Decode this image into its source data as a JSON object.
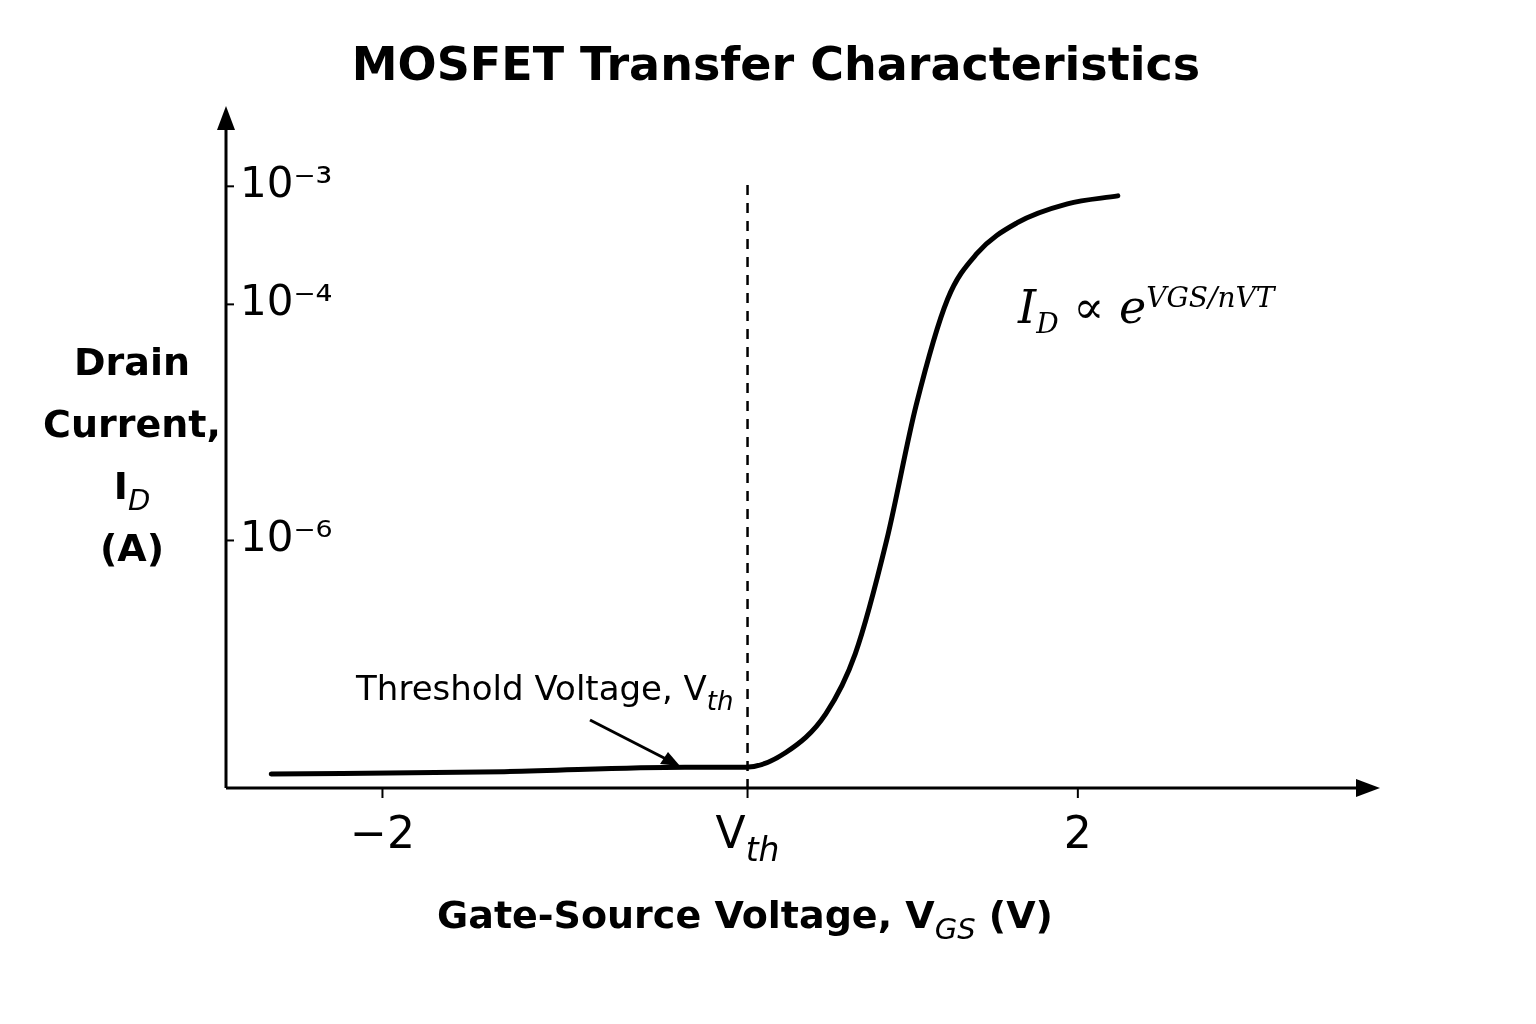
{
  "chart_data": {
    "type": "line",
    "title": "MOSFET Transfer Characteristics",
    "xlabel": "Gate-Source Voltage, V$_{GS}$ (V)",
    "ylabel": "Drain Current, I$_{D}$ (A)",
    "x": [
      -2.64,
      -1.3,
      -0.26,
      0.09,
      0.32,
      0.55,
      0.72,
      0.9,
      1.07,
      1.25,
      1.42,
      1.65,
      1.94,
      2.23
    ],
    "values": [
      1.05e-08,
      1.1e-08,
      1.2e-08,
      1.2e-08,
      1.6e-08,
      3.4e-08,
      1.1e-07,
      1e-06,
      1.4e-05,
      0.00011,
      0.00027,
      0.00049,
      0.00071,
      0.00083
    ],
    "color": "#000000",
    "log": "y",
    "marker": "none",
    "line_style": "solid",
    "xlim": [
      -2.9,
      3.6
    ],
    "xticks": [
      {
        "value": -2,
        "label": "−2"
      },
      {
        "value": 0.1,
        "label": "V$_{th}$"
      },
      {
        "value": 2,
        "label": "2"
      }
    ],
    "ylim": [
      8e-09,
      0.003
    ],
    "yticks": [
      {
        "value": 1e-06,
        "label": "10⁻⁶"
      },
      {
        "value": 0.0001,
        "label": "10⁻⁴"
      },
      {
        "value": 0.001,
        "label": "10⁻³"
      }
    ],
    "ref_lines": [
      {
        "axis": "x",
        "value": 0.1,
        "label": "Threshold Voltage, V$_{th}$",
        "line_style": "dashed",
        "color": "#000000"
      }
    ],
    "annotations": [
      "I$_{D}$ ∝ e$^{VGS/nVT}$"
    ]
  }
}
